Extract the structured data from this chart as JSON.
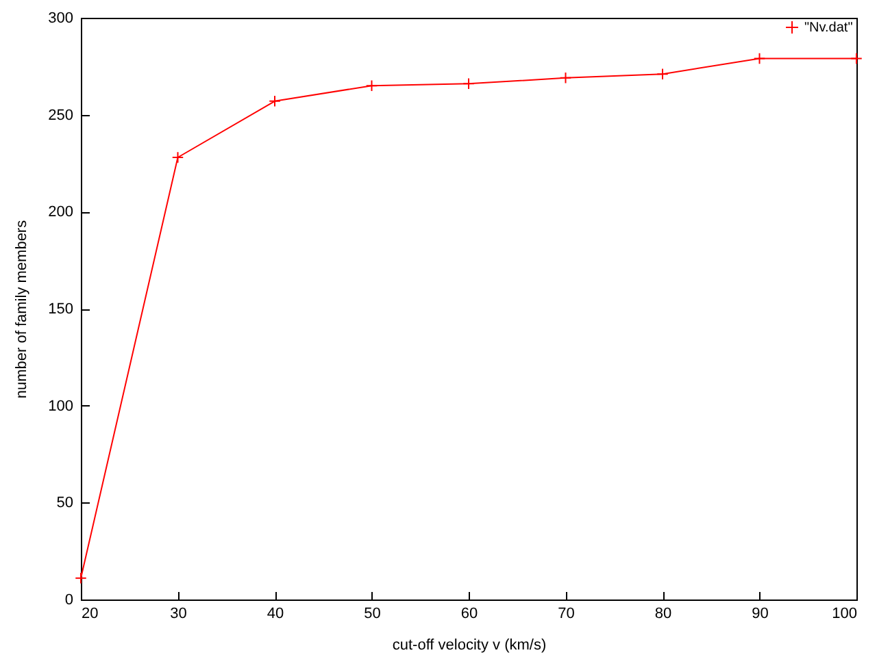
{
  "chart_data": {
    "type": "line",
    "xlabel": "cut-off velocity v (km/s)",
    "ylabel": "number of family members",
    "x": [
      20,
      30,
      40,
      50,
      60,
      70,
      80,
      90,
      100
    ],
    "series": [
      {
        "name": "\"Nv.dat\"",
        "color": "#ff0000",
        "values": [
          11,
          228,
          257,
          265,
          266,
          269,
          271,
          279,
          279
        ]
      }
    ],
    "xlim": [
      20,
      100
    ],
    "xticks": [
      20,
      30,
      40,
      50,
      60,
      70,
      80,
      90,
      100
    ],
    "ylim": [
      0,
      300
    ],
    "yticks": [
      0,
      50,
      100,
      150,
      200,
      250,
      300
    ],
    "grid": false,
    "legend": "top right",
    "marker": "cross",
    "line_style": "solid"
  }
}
